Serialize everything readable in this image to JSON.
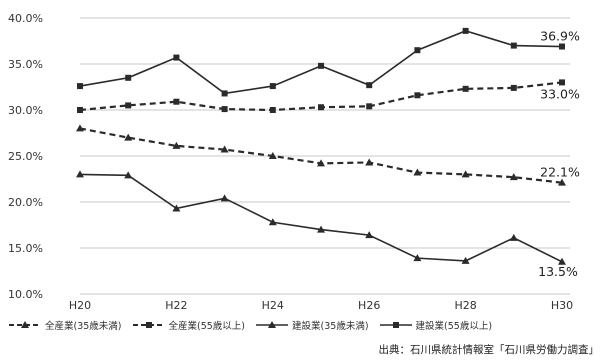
{
  "chart_data": {
    "type": "line",
    "categories": [
      "H20",
      "H21",
      "H22",
      "H23",
      "H24",
      "H25",
      "H26",
      "H27",
      "H28",
      "H29",
      "H30"
    ],
    "x_tick_labels": [
      "H20",
      "H22",
      "H24",
      "H26",
      "H28",
      "H30"
    ],
    "y_tick_labels": [
      "40.0%",
      "35.0%",
      "30.0%",
      "25.0%",
      "20.0%",
      "15.0%",
      "10.0%"
    ],
    "ylim": [
      10,
      40
    ],
    "grid": "horizontal",
    "legend_position": "bottom",
    "series": [
      {
        "name": "全産業(35歳未満)",
        "style": "dashed",
        "marker": "triangle",
        "values": [
          28.0,
          27.0,
          26.1,
          25.7,
          25.0,
          24.2,
          24.3,
          23.2,
          23.0,
          22.7,
          22.1
        ]
      },
      {
        "name": "全産業(55歳以上)",
        "style": "dashed",
        "marker": "square",
        "values": [
          30.0,
          30.5,
          30.9,
          30.1,
          30.0,
          30.3,
          30.4,
          31.6,
          32.3,
          32.4,
          33.0
        ]
      },
      {
        "name": "建設業(35歳未満)",
        "style": "solid",
        "marker": "triangle",
        "values": [
          23.0,
          22.9,
          19.3,
          20.4,
          17.8,
          17.0,
          16.4,
          13.9,
          13.6,
          16.1,
          13.5
        ]
      },
      {
        "name": "建設業(55歳以上)",
        "style": "solid",
        "marker": "square",
        "values": [
          32.6,
          33.5,
          35.7,
          31.8,
          32.6,
          34.8,
          32.7,
          36.5,
          38.6,
          37.0,
          36.9
        ]
      }
    ],
    "annotations": [
      {
        "series": 3,
        "index": 10,
        "text": "36.9%"
      },
      {
        "series": 1,
        "index": 10,
        "text": "33.0%"
      },
      {
        "series": 0,
        "index": 10,
        "text": "22.1%"
      },
      {
        "series": 2,
        "index": 10,
        "text": "13.5%"
      }
    ]
  },
  "source": "出典：石川県統計情報室「石川県労働力調査」",
  "colors": {
    "line": "#2b2b2b",
    "grid": "#c8c8c8",
    "text": "#333333"
  }
}
